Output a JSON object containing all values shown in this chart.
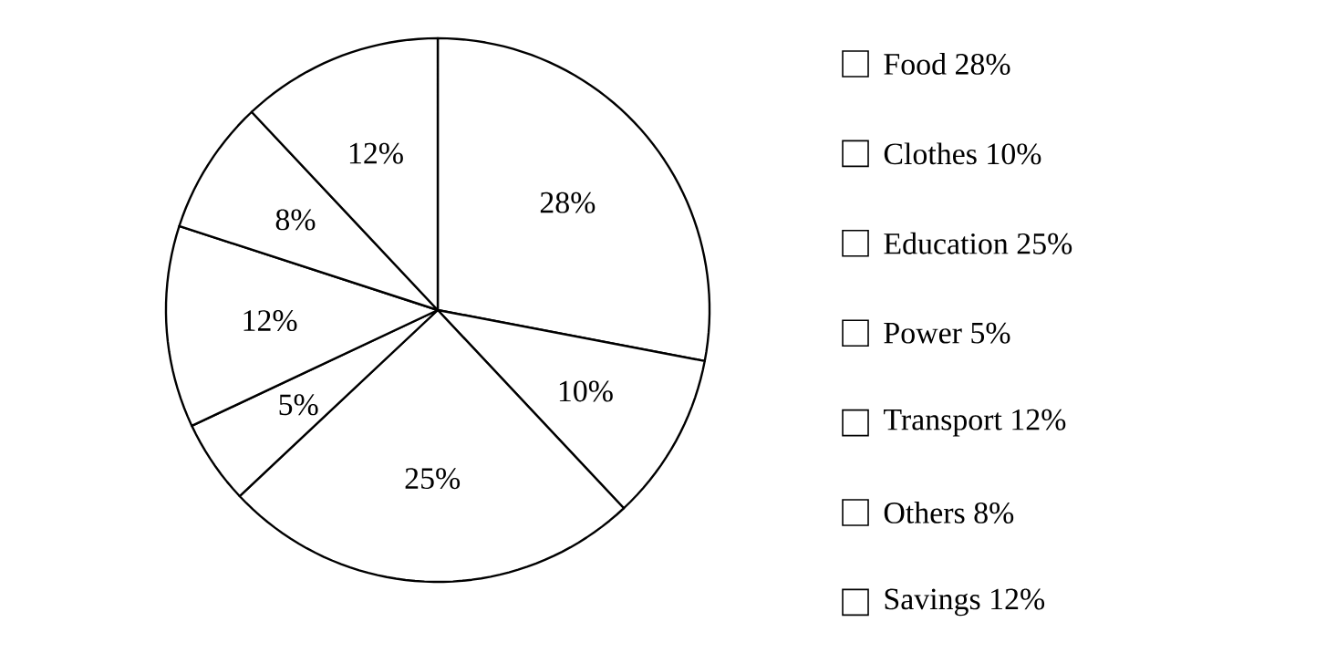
{
  "chart_data": {
    "type": "pie",
    "categories": [
      "Food 28%",
      "Clothes 10%",
      "Education 25%",
      "Power 5%",
      "Transport 12%",
      "Others 8%",
      "Savings 12%"
    ],
    "values": [
      28,
      10,
      25,
      5,
      12,
      8,
      12
    ],
    "value_labels": [
      "28%",
      "10%",
      "25%",
      "5%",
      "12%",
      "8%",
      "12%"
    ],
    "colors": [
      "#ffffff",
      "#ffffff",
      "#ffffff",
      "#ffffff",
      "#ffffff",
      "#ffffff",
      "#ffffff"
    ],
    "legend": "right"
  }
}
